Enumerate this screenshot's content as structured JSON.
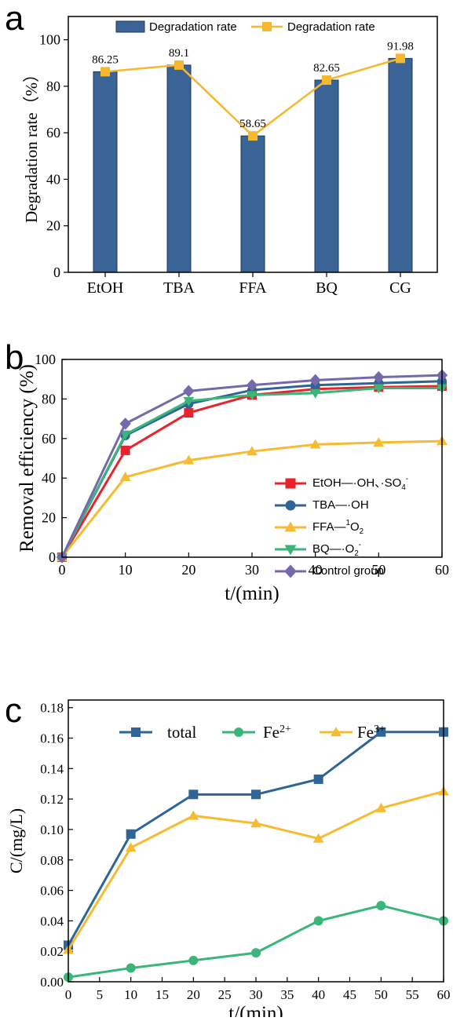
{
  "panels": [
    {
      "letter": "a"
    },
    {
      "letter": "b"
    },
    {
      "letter": "c"
    }
  ],
  "chart_data": [
    {
      "type": "bar",
      "categories": [
        "EtOH",
        "TBA",
        "FFA",
        "BQ",
        "CG"
      ],
      "series": [
        {
          "name": "Degradation rate",
          "type": "bar",
          "values": [
            86.25,
            89.1,
            58.65,
            82.65,
            91.98
          ],
          "color": "#3a6496"
        },
        {
          "name": "Degradation rate",
          "type": "line",
          "values": [
            86.25,
            89.1,
            58.65,
            82.65,
            91.98
          ],
          "color": "#f5b82e"
        }
      ],
      "data_labels": [
        "86.25",
        "89.1",
        "58.65",
        "82.65",
        "91.98"
      ],
      "ylabel": "Degradation rate（%）",
      "xlabel": "",
      "ylim": [
        0,
        110
      ],
      "yticks": [
        0,
        20,
        40,
        60,
        80,
        100
      ],
      "legend_position": "top"
    },
    {
      "type": "line",
      "x": [
        0,
        10,
        20,
        30,
        40,
        50,
        60
      ],
      "series": [
        {
          "label_main": "EtOH—·OH、·SO",
          "label_sub": "4",
          "label_sup": "-",
          "label_tail": "",
          "values": [
            0,
            54,
            73,
            82,
            85,
            86,
            86.5
          ],
          "color": "#e8232b",
          "marker": "square"
        },
        {
          "label_main": "TBA—·OH",
          "label_sub": "",
          "label_sup": "",
          "label_tail": "",
          "values": [
            0,
            61.5,
            77.5,
            84.5,
            87,
            88,
            89
          ],
          "color": "#2e6496",
          "marker": "circle"
        },
        {
          "label_main": "FFA—",
          "label_sub": "",
          "label_sup": "1",
          "label_tail": "O2",
          "values": [
            0,
            40.5,
            49,
            53.5,
            57,
            58,
            58.7
          ],
          "color": "#f7bb31",
          "marker": "triangle-up"
        },
        {
          "label_main": "BQ—·O",
          "label_sub": "2",
          "label_sup": "-",
          "label_tail": "",
          "values": [
            0,
            62,
            79,
            82,
            83,
            85.5,
            85.5
          ],
          "color": "#3ab679",
          "marker": "triangle-down"
        },
        {
          "label_main": "Control group",
          "label_sub": "",
          "label_sup": "",
          "label_tail": "",
          "values": [
            0,
            67.5,
            84,
            87,
            89.5,
            91,
            92
          ],
          "color": "#7469a9",
          "marker": "diamond"
        }
      ],
      "xlabel": "t/(min)",
      "ylabel": "Removal efficiency (%)",
      "xlim": [
        0,
        60
      ],
      "ylim": [
        0,
        100
      ],
      "xticks": [
        0,
        10,
        20,
        30,
        40,
        50,
        60
      ],
      "yticks": [
        0,
        20,
        40,
        60,
        80,
        100
      ],
      "legend_position": "lower-right"
    },
    {
      "type": "line",
      "x": [
        0,
        10,
        20,
        30,
        40,
        50,
        60
      ],
      "series": [
        {
          "label_main": "total",
          "label_sup": "",
          "values": [
            0.024,
            0.097,
            0.123,
            0.123,
            0.133,
            0.164,
            0.164
          ],
          "color": "#2e6496",
          "marker": "square"
        },
        {
          "label_main": "Fe",
          "label_sup": "2+",
          "values": [
            0.003,
            0.009,
            0.014,
            0.019,
            0.04,
            0.05,
            0.04
          ],
          "color": "#3ab679",
          "marker": "circle"
        },
        {
          "label_main": "Fe",
          "label_sup": "3+",
          "values": [
            0.021,
            0.088,
            0.109,
            0.104,
            0.094,
            0.114,
            0.125
          ],
          "color": "#f7bb31",
          "marker": "triangle-up"
        }
      ],
      "xlabel": "t/(min)",
      "ylabel": "C/(mg/L)",
      "xlim": [
        0,
        60
      ],
      "ylim": [
        0,
        0.185
      ],
      "xticks": [
        0,
        5,
        10,
        15,
        20,
        25,
        30,
        35,
        40,
        45,
        50,
        55,
        60
      ],
      "yticks": [
        "0.00",
        "0.02",
        "0.04",
        "0.06",
        "0.08",
        "0.10",
        "0.12",
        "0.14",
        "0.16",
        "0.18"
      ],
      "legend_position": "top"
    }
  ]
}
